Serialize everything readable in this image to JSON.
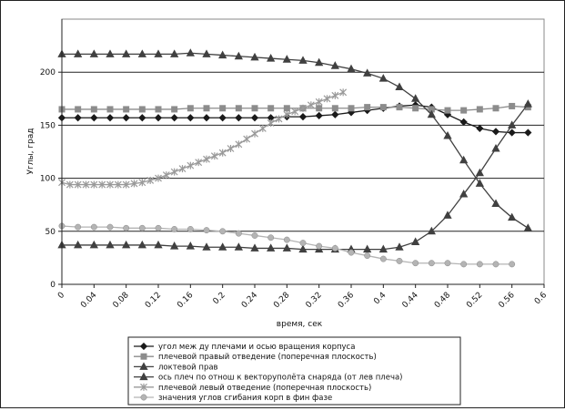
{
  "chart_data": {
    "type": "line",
    "xlabel": "время, сек",
    "ylabel": "Углы, град",
    "xlim": [
      0,
      0.6
    ],
    "ylim": [
      0,
      250
    ],
    "x_ticks": [
      "0",
      "0.04",
      "0.08",
      "0.12",
      "0.16",
      "0.2",
      "0.24",
      "0.28",
      "0.32",
      "0.36",
      "0.4",
      "0.44",
      "0.48",
      "0.52",
      "0.56",
      "0.6"
    ],
    "y_ticks": [
      "0",
      "50",
      "100",
      "150",
      "200"
    ],
    "grid": "horizontal",
    "legend_position": "bottom",
    "series": [
      {
        "name": "угол меж ду плечами и осью вращения корпуса",
        "marker": "diamond",
        "x": [
          0,
          0.02,
          0.04,
          0.06,
          0.08,
          0.1,
          0.12,
          0.14,
          0.16,
          0.18,
          0.2,
          0.22,
          0.24,
          0.26,
          0.28,
          0.3,
          0.32,
          0.34,
          0.36,
          0.38,
          0.4,
          0.42,
          0.44,
          0.46,
          0.48,
          0.5,
          0.52,
          0.54,
          0.56,
          0.58
        ],
        "values": [
          157,
          157,
          157,
          157,
          157,
          157,
          157,
          157,
          157,
          157,
          157,
          157,
          157,
          157,
          158,
          158,
          159,
          160,
          162,
          164,
          166,
          168,
          169,
          167,
          160,
          153,
          147,
          144,
          143,
          143
        ]
      },
      {
        "name": "плечевой правый отведение (поперечная плоскость)",
        "marker": "square",
        "x": [
          0,
          0.02,
          0.04,
          0.06,
          0.08,
          0.1,
          0.12,
          0.14,
          0.16,
          0.18,
          0.2,
          0.22,
          0.24,
          0.26,
          0.28,
          0.3,
          0.32,
          0.34,
          0.36,
          0.38,
          0.4,
          0.42,
          0.44,
          0.46,
          0.48,
          0.5,
          0.52,
          0.54,
          0.56,
          0.58
        ],
        "values": [
          165,
          165,
          165,
          165,
          165,
          165,
          165,
          165,
          166,
          166,
          166,
          166,
          166,
          166,
          166,
          166,
          166,
          166,
          166,
          167,
          167,
          167,
          166,
          165,
          164,
          164,
          165,
          166,
          168,
          167
        ]
      },
      {
        "name": "локтевой прав",
        "marker": "triangle",
        "x": [
          0,
          0.02,
          0.04,
          0.06,
          0.08,
          0.1,
          0.12,
          0.14,
          0.16,
          0.18,
          0.2,
          0.22,
          0.24,
          0.26,
          0.28,
          0.3,
          0.32,
          0.34,
          0.36,
          0.38,
          0.4,
          0.42,
          0.44,
          0.46,
          0.48,
          0.5,
          0.52,
          0.54,
          0.56,
          0.58
        ],
        "values": [
          217,
          217,
          217,
          217,
          217,
          217,
          217,
          217,
          218,
          217,
          216,
          215,
          214,
          213,
          212,
          211,
          209,
          206,
          203,
          199,
          194,
          186,
          175,
          160,
          140,
          117,
          95,
          76,
          63,
          53
        ]
      },
      {
        "name": "ось плеч по отнош к векторуполёта снаряда (от лев плеча)",
        "marker": "triangle",
        "x": [
          0,
          0.02,
          0.04,
          0.06,
          0.08,
          0.1,
          0.12,
          0.14,
          0.16,
          0.18,
          0.2,
          0.22,
          0.24,
          0.26,
          0.28,
          0.3,
          0.32,
          0.34,
          0.36,
          0.38,
          0.4,
          0.42,
          0.44,
          0.46,
          0.48,
          0.5,
          0.52,
          0.54,
          0.56,
          0.58
        ],
        "values": [
          37,
          37,
          37,
          37,
          37,
          37,
          37,
          36,
          36,
          35,
          35,
          35,
          34,
          34,
          34,
          33,
          33,
          33,
          33,
          33,
          33,
          35,
          40,
          50,
          65,
          85,
          105,
          128,
          150,
          170
        ]
      },
      {
        "name": "плечевой левый отведение (поперечная плоскость)",
        "marker": "star",
        "x": [
          0,
          0.01,
          0.02,
          0.03,
          0.04,
          0.05,
          0.06,
          0.07,
          0.08,
          0.09,
          0.1,
          0.11,
          0.12,
          0.13,
          0.14,
          0.15,
          0.16,
          0.17,
          0.18,
          0.19,
          0.2,
          0.21,
          0.22,
          0.23,
          0.24,
          0.25,
          0.26,
          0.27,
          0.28,
          0.29,
          0.3,
          0.31,
          0.32,
          0.33,
          0.34,
          0.35
        ],
        "values": [
          96,
          94,
          94,
          94,
          94,
          94,
          94,
          94,
          94,
          95,
          96,
          98,
          100,
          103,
          106,
          109,
          112,
          115,
          118,
          121,
          124,
          128,
          132,
          137,
          142,
          147,
          152,
          156,
          160,
          163,
          166,
          169,
          172,
          175,
          178,
          181
        ]
      },
      {
        "name": "значения углов сгибания корп в фин фазе",
        "marker": "circle",
        "x": [
          0,
          0.02,
          0.04,
          0.06,
          0.08,
          0.1,
          0.12,
          0.14,
          0.16,
          0.18,
          0.2,
          0.22,
          0.24,
          0.26,
          0.28,
          0.3,
          0.32,
          0.34,
          0.36,
          0.38,
          0.4,
          0.42,
          0.44,
          0.46,
          0.48,
          0.5,
          0.52,
          0.54,
          0.56
        ],
        "values": [
          55,
          54,
          54,
          54,
          53,
          53,
          53,
          52,
          52,
          51,
          50,
          48,
          46,
          44,
          42,
          39,
          36,
          34,
          30,
          27,
          24,
          22,
          20,
          20,
          20,
          19,
          19,
          19,
          19
        ]
      }
    ]
  }
}
